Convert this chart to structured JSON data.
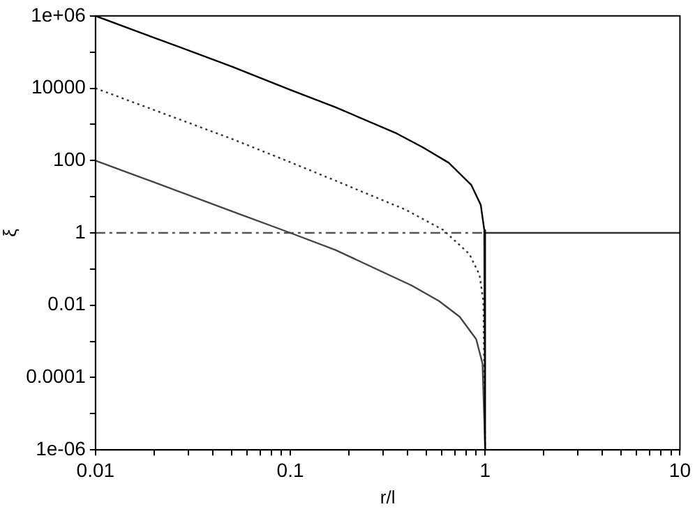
{
  "chart_data": {
    "type": "line",
    "xlabel": "r/l",
    "ylabel": "ξ",
    "log": "xy",
    "grid": false,
    "legend": false,
    "marker": "none",
    "xlim": [
      0.01,
      10
    ],
    "ylim": [
      1e-06,
      1000000
    ],
    "xticks": [
      0.01,
      {
        "value": 0.02,
        "label": null
      },
      {
        "value": 0.03,
        "label": null
      },
      {
        "value": 0.04,
        "label": null
      },
      {
        "value": 0.05,
        "label": null
      },
      {
        "value": 0.06,
        "label": null
      },
      {
        "value": 0.07,
        "label": null
      },
      {
        "value": 0.08,
        "label": null
      },
      {
        "value": 0.09,
        "label": null
      },
      0.1,
      {
        "value": 0.2,
        "label": null
      },
      {
        "value": 0.3,
        "label": null
      },
      {
        "value": 0.4,
        "label": null
      },
      {
        "value": 0.5,
        "label": null
      },
      {
        "value": 0.6,
        "label": null
      },
      {
        "value": 0.7,
        "label": null
      },
      {
        "value": 0.8,
        "label": null
      },
      {
        "value": 0.9,
        "label": null
      },
      1,
      {
        "value": 2,
        "label": null
      },
      {
        "value": 3,
        "label": null
      },
      {
        "value": 4,
        "label": null
      },
      {
        "value": 5,
        "label": null
      },
      {
        "value": 6,
        "label": null
      },
      {
        "value": 7,
        "label": null
      },
      {
        "value": 8,
        "label": null
      },
      {
        "value": 9,
        "label": null
      },
      10
    ],
    "yticks": [
      {
        "value": 1e-06,
        "label": "1e-06"
      },
      {
        "value": 1e-05,
        "label": null
      },
      0.0001,
      {
        "value": 0.001,
        "label": null
      },
      0.01,
      {
        "value": 0.1,
        "label": null
      },
      1,
      {
        "value": 10,
        "label": null
      },
      100,
      {
        "value": 1000,
        "label": null
      },
      10000,
      {
        "value": 100000,
        "label": null
      },
      {
        "value": 1000000,
        "label": "1e+06"
      }
    ],
    "series": [
      {
        "color": "#000000",
        "line_style": "solid",
        "x": [
          0.01,
          0.02,
          0.05,
          0.1,
          0.17,
          0.345,
          0.48,
          0.65,
          0.85,
          0.95,
          0.99,
          1
        ],
        "values": [
          1000000,
          250000,
          40000,
          9000,
          3000,
          590,
          230,
          87,
          21,
          5.9,
          1.2,
          1e-06
        ]
      },
      {
        "color": "#333333",
        "line_style": "dotted",
        "x": [
          0.01,
          0.02,
          0.05,
          0.1,
          0.17,
          0.39,
          0.61,
          0.83,
          0.935,
          0.98,
          1
        ],
        "values": [
          10000,
          2500,
          400,
          90,
          28,
          4.4,
          1.2,
          0.26,
          0.07,
          0.013,
          1e-06
        ]
      },
      {
        "color": "#444444",
        "line_style": "solid",
        "x": [
          0.01,
          0.02,
          0.05,
          0.1,
          0.17,
          0.42,
          0.58,
          0.74,
          0.9,
          0.97,
          1
        ],
        "values": [
          100,
          25,
          4,
          1,
          0.34,
          0.035,
          0.013,
          0.0048,
          0.00115,
          0.00024,
          1e-06
        ]
      },
      {
        "color": "#555555",
        "line_style": "dashed",
        "x": [
          0.01,
          1
        ],
        "values": [
          1,
          1
        ]
      },
      {
        "color": "#333333",
        "line_style": "solid",
        "x": [
          1,
          10
        ],
        "values": [
          1,
          1
        ]
      }
    ]
  }
}
